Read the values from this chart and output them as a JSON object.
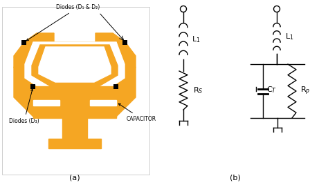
{
  "background_color": "#ffffff",
  "antenna_color": "#F5A623",
  "text_color": "#000000",
  "label_a": "(a)",
  "label_b": "(b)",
  "label_diodes_top": "Diodes (D₁ & D₂)",
  "label_diodes_bottom": "Diodes (D₃)",
  "label_capacitor": "CAPACITOR",
  "label_L1": "L$_1$",
  "label_Rs": "R$_S$",
  "label_CT": "C$_T$",
  "label_Rp": "R$_p$"
}
